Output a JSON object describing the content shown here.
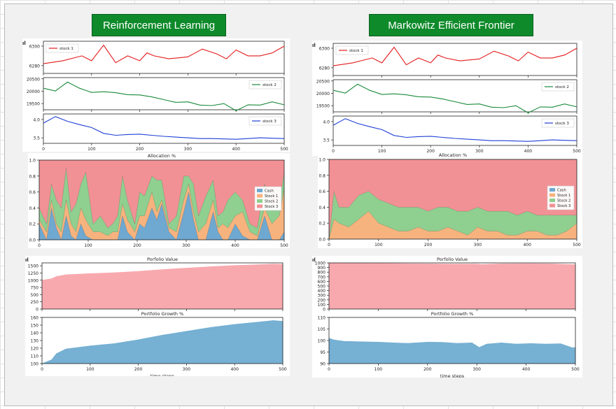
{
  "headers": {
    "left": "Reinforcement Learning",
    "right": "Markowitz Efficient Frontier"
  },
  "colors": {
    "banner": "#0f8a2b",
    "stock_1": "#e41a1c",
    "stock_2": "#1a8a3a",
    "stock_3": "#1f3fd6",
    "cash": "#6fa8d0",
    "alloc_stock_1": "#f7b37e",
    "alloc_stock_2": "#8fcf8f",
    "alloc_stock_3": "#f29195",
    "value": "#f8a9ae",
    "growth": "#76b0d3"
  },
  "chart_data": [
    {
      "panel": "Reinforcement Learning",
      "type": "line",
      "title": "",
      "xlabel": "",
      "xlim": [
        0,
        500
      ],
      "xticks": [
        "0",
        "100",
        "200",
        "300",
        "400",
        "500"
      ],
      "subplots": [
        {
          "series": [
            {
              "name": "stock 1",
              "x": [
                0,
                40,
                80,
                100,
                125,
                150,
                175,
                200,
                215,
                230,
                260,
                300,
                330,
                360,
                380,
                400,
                425,
                450,
                475,
                500
              ],
              "y": [
                6282,
                6285,
                6290,
                6285,
                6301,
                6283,
                6290,
                6285,
                6293,
                6290,
                6287,
                6289,
                6297,
                6292,
                6287,
                6296,
                6290,
                6290,
                6293,
                6300
              ]
            }
          ],
          "yticks": [
            "6280",
            "6300"
          ],
          "ylim": [
            6272,
            6305
          ],
          "legend": "top-left"
        },
        {
          "series": [
            {
              "name": "stock 2",
              "x": [
                0,
                25,
                50,
                75,
                100,
                125,
                150,
                175,
                200,
                225,
                250,
                275,
                300,
                325,
                350,
                375,
                400,
                425,
                450,
                475,
                500
              ],
              "y": [
                20120,
                20010,
                20370,
                20120,
                19950,
                19980,
                19940,
                19860,
                19850,
                19770,
                19660,
                19550,
                19570,
                19440,
                19420,
                19500,
                19210,
                19450,
                19440,
                19570,
                19450
              ]
            }
          ],
          "yticks": [
            "19500",
            "20000",
            "20500"
          ],
          "ylim": [
            19250,
            20550
          ],
          "legend": "top-right"
        },
        {
          "series": [
            {
              "name": "stock 3",
              "x": [
                0,
                25,
                50,
                75,
                100,
                125,
                150,
                175,
                200,
                225,
                250,
                275,
                300,
                325,
                350,
                375,
                400,
                425,
                450,
                475,
                500
              ],
              "y": [
                3.9,
                4.08,
                3.95,
                3.86,
                3.78,
                3.62,
                3.57,
                3.59,
                3.6,
                3.57,
                3.54,
                3.52,
                3.5,
                3.48,
                3.48,
                3.47,
                3.46,
                3.48,
                3.5,
                3.49,
                3.48
              ]
            }
          ],
          "yticks": [
            "3.5",
            "4.0"
          ],
          "ylim": [
            3.35,
            4.15
          ],
          "legend": "top-right"
        }
      ]
    },
    {
      "panel": "Reinforcement Learning",
      "type": "area",
      "title": "Allocation %",
      "xlim": [
        0,
        500
      ],
      "ylim": [
        0,
        1.0
      ],
      "xticks": [
        "0",
        "100",
        "200",
        "300",
        "400",
        "500"
      ],
      "yticks": [
        "0.0",
        "0.2",
        "0.4",
        "0.6",
        "0.8",
        "1.0"
      ],
      "legend": "right",
      "x": [
        0,
        15,
        25,
        35,
        45,
        55,
        65,
        75,
        85,
        95,
        110,
        125,
        140,
        150,
        160,
        170,
        180,
        195,
        205,
        215,
        230,
        240,
        250,
        265,
        280,
        295,
        305,
        315,
        325,
        340,
        355,
        365,
        375,
        385,
        400,
        415,
        430,
        445,
        460,
        475,
        490,
        500
      ],
      "series": [
        {
          "name": "Cash",
          "values": [
            0.2,
            0.0,
            0.4,
            0.15,
            0.0,
            0.3,
            0.05,
            0.0,
            0.2,
            0.05,
            0.0,
            0.0,
            0.0,
            0.0,
            0.0,
            0.3,
            0.1,
            0.0,
            0.2,
            0.15,
            0.4,
            0.25,
            0.45,
            0.1,
            0.0,
            0.35,
            0.6,
            0.25,
            0.0,
            0.0,
            0.35,
            0.1,
            0.0,
            0.0,
            0.2,
            0.05,
            0.0,
            0.0,
            0.3,
            0.0,
            0.0,
            0.1
          ]
        },
        {
          "name": "Stock 1",
          "values": [
            0.05,
            0.1,
            0.1,
            0.05,
            0.1,
            0.2,
            0.15,
            0.1,
            0.2,
            0.2,
            0.1,
            0.1,
            0.05,
            0.1,
            0.1,
            0.15,
            0.15,
            0.1,
            0.1,
            0.15,
            0.2,
            0.1,
            0.05,
            0.05,
            0.1,
            0.15,
            0.1,
            0.1,
            0.1,
            0.2,
            0.15,
            0.05,
            0.2,
            0.15,
            0.1,
            0.3,
            0.1,
            0.05,
            0.1,
            0.2,
            0.3,
            0.55
          ]
        },
        {
          "name": "Stock 2",
          "values": [
            0.15,
            0.1,
            0.2,
            0.3,
            0.3,
            0.4,
            0.15,
            0.35,
            0.3,
            0.6,
            0.1,
            0.2,
            0.1,
            0.1,
            0.2,
            0.35,
            0.25,
            0.1,
            0.3,
            0.25,
            0.2,
            0.4,
            0.25,
            0.05,
            0.2,
            0.3,
            0.1,
            0.35,
            0.2,
            0.35,
            0.25,
            0.15,
            0.15,
            0.35,
            0.3,
            0.15,
            0.1,
            0.1,
            0.3,
            0.2,
            0.15,
            0.2
          ]
        },
        {
          "name": "Stock 3",
          "values": [
            0.6,
            0.8,
            0.3,
            0.5,
            0.6,
            0.1,
            0.65,
            0.55,
            0.3,
            0.15,
            0.8,
            0.7,
            0.85,
            0.8,
            0.7,
            0.2,
            0.5,
            0.8,
            0.4,
            0.45,
            0.2,
            0.25,
            0.25,
            0.8,
            0.7,
            0.2,
            0.2,
            0.3,
            0.7,
            0.45,
            0.25,
            0.7,
            0.65,
            0.5,
            0.4,
            0.5,
            0.8,
            0.85,
            0.3,
            0.6,
            0.55,
            0.15
          ]
        }
      ]
    },
    {
      "panel": "Reinforcement Learning",
      "type": "area",
      "title": "Porfolio Value",
      "xlim": [
        0,
        500
      ],
      "ylim": [
        0,
        1600
      ],
      "yticks": [
        "0",
        "250",
        "500",
        "750",
        "1000",
        "1250",
        "1500"
      ],
      "x": [
        0,
        20,
        30,
        50,
        100,
        150,
        200,
        250,
        300,
        350,
        400,
        450,
        480,
        500
      ],
      "values": [
        1000,
        1050,
        1130,
        1190,
        1230,
        1260,
        1310,
        1370,
        1420,
        1470,
        1510,
        1540,
        1560,
        1550
      ]
    },
    {
      "panel": "Reinforcement Learning",
      "type": "area",
      "title": "Portfolio Growth %",
      "xlabel": "time steps",
      "xlim": [
        0,
        500
      ],
      "ylim": [
        100,
        160
      ],
      "xticks": [
        "0",
        "100",
        "200",
        "300",
        "400",
        "500"
      ],
      "yticks": [
        "100",
        "110",
        "120",
        "130",
        "140",
        "150",
        "160"
      ],
      "x": [
        0,
        20,
        30,
        50,
        100,
        150,
        200,
        250,
        300,
        350,
        400,
        450,
        480,
        500
      ],
      "values": [
        100,
        105,
        113,
        119,
        123,
        126,
        131,
        137,
        142,
        147,
        151,
        154,
        156,
        155
      ]
    },
    {
      "panel": "Markowitz Efficient Frontier",
      "type": "line",
      "title": "",
      "xlabel": "",
      "xlim": [
        0,
        500
      ],
      "xticks": [
        "0",
        "100",
        "200",
        "300",
        "400",
        "500"
      ],
      "subplots": [
        {
          "series": [
            {
              "name": "stock 1",
              "x": [
                0,
                40,
                80,
                100,
                125,
                150,
                175,
                200,
                215,
                230,
                260,
                300,
                330,
                360,
                380,
                400,
                425,
                450,
                475,
                500
              ],
              "y": [
                6282,
                6285,
                6290,
                6285,
                6301,
                6283,
                6290,
                6285,
                6293,
                6290,
                6287,
                6289,
                6297,
                6292,
                6287,
                6296,
                6290,
                6290,
                6293,
                6300
              ]
            }
          ],
          "yticks": [
            "6280",
            "6300"
          ],
          "ylim": [
            6272,
            6305
          ],
          "legend": "top-left"
        },
        {
          "series": [
            {
              "name": "stock 2",
              "x": [
                0,
                25,
                50,
                75,
                100,
                125,
                150,
                175,
                200,
                225,
                250,
                275,
                300,
                325,
                350,
                375,
                400,
                425,
                450,
                475,
                500
              ],
              "y": [
                20120,
                20010,
                20370,
                20120,
                19950,
                19980,
                19940,
                19860,
                19850,
                19770,
                19660,
                19550,
                19570,
                19440,
                19420,
                19500,
                19210,
                19450,
                19440,
                19570,
                19450
              ]
            }
          ],
          "yticks": [
            "19500",
            "20000",
            "20500"
          ],
          "ylim": [
            19250,
            20550
          ],
          "legend": "top-right"
        },
        {
          "series": [
            {
              "name": "stock 3",
              "x": [
                0,
                25,
                50,
                75,
                100,
                125,
                150,
                175,
                200,
                225,
                250,
                275,
                300,
                325,
                350,
                375,
                400,
                425,
                450,
                475,
                500
              ],
              "y": [
                3.9,
                4.08,
                3.95,
                3.86,
                3.78,
                3.62,
                3.57,
                3.59,
                3.6,
                3.57,
                3.54,
                3.52,
                3.5,
                3.48,
                3.48,
                3.47,
                3.46,
                3.48,
                3.5,
                3.49,
                3.48
              ]
            }
          ],
          "yticks": [
            "3.5",
            "4.0"
          ],
          "ylim": [
            3.35,
            4.15
          ],
          "legend": "top-right"
        }
      ]
    },
    {
      "panel": "Markowitz Efficient Frontier",
      "type": "area",
      "title": "Allocation %",
      "xlim": [
        0,
        500
      ],
      "ylim": [
        0,
        1.0
      ],
      "xticks": [
        "0",
        "100",
        "200",
        "300",
        "400",
        "500"
      ],
      "yticks": [
        "0.0",
        "0.2",
        "0.4",
        "0.6",
        "0.8",
        "1.0"
      ],
      "legend": "right",
      "x": [
        0,
        10,
        20,
        40,
        60,
        80,
        100,
        120,
        140,
        160,
        180,
        200,
        220,
        240,
        260,
        280,
        300,
        320,
        340,
        360,
        380,
        400,
        420,
        440,
        460,
        480,
        500
      ],
      "series": [
        {
          "name": "Cash",
          "values": [
            0,
            0,
            0,
            0,
            0,
            0,
            0,
            0,
            0,
            0,
            0,
            0,
            0,
            0,
            0,
            0,
            0,
            0,
            0,
            0,
            0,
            0,
            0,
            0,
            0,
            0,
            0
          ]
        },
        {
          "name": "Stock 1",
          "values": [
            0.0,
            0.25,
            0.2,
            0.15,
            0.25,
            0.35,
            0.2,
            0.15,
            0.1,
            0.1,
            0.15,
            0.1,
            0.1,
            0.15,
            0.1,
            0.05,
            0.15,
            0.1,
            0.1,
            0.05,
            0.05,
            0.1,
            0.1,
            0.05,
            0.05,
            0.1,
            0.2
          ]
        },
        {
          "name": "Stock 2",
          "values": [
            0.0,
            0.35,
            0.2,
            0.25,
            0.3,
            0.25,
            0.3,
            0.3,
            0.3,
            0.3,
            0.25,
            0.25,
            0.3,
            0.25,
            0.25,
            0.3,
            0.25,
            0.25,
            0.25,
            0.3,
            0.25,
            0.25,
            0.2,
            0.25,
            0.25,
            0.2,
            0.1
          ]
        },
        {
          "name": "Stock 3",
          "values": [
            1.0,
            0.4,
            0.6,
            0.6,
            0.45,
            0.4,
            0.5,
            0.55,
            0.6,
            0.6,
            0.6,
            0.65,
            0.6,
            0.6,
            0.65,
            0.65,
            0.6,
            0.65,
            0.65,
            0.65,
            0.7,
            0.65,
            0.7,
            0.7,
            0.7,
            0.7,
            0.7
          ]
        }
      ]
    },
    {
      "panel": "Markowitz Efficient Frontier",
      "type": "area",
      "title": "Porfolio Value",
      "xlim": [
        0,
        500
      ],
      "ylim": [
        0,
        1000
      ],
      "yticks": [
        "0",
        "100",
        "200",
        "300",
        "400",
        "500",
        "600",
        "700",
        "800",
        "900",
        "1000"
      ],
      "x": [
        0,
        50,
        100,
        150,
        200,
        250,
        300,
        310,
        350,
        400,
        450,
        500
      ],
      "values": [
        1000,
        995,
        990,
        985,
        980,
        975,
        975,
        965,
        980,
        985,
        980,
        960
      ]
    },
    {
      "panel": "Markowitz Efficient Frontier",
      "type": "area",
      "title": "Portfolio Growth %",
      "xlabel": "time steps",
      "xlim": [
        0,
        500
      ],
      "ylim": [
        90,
        110
      ],
      "xticks": [
        "0",
        "100",
        "200",
        "300",
        "400",
        "500"
      ],
      "yticks": [
        "90",
        "95",
        "100",
        "105",
        "110"
      ],
      "x": [
        0,
        10,
        30,
        60,
        100,
        130,
        160,
        200,
        230,
        260,
        290,
        305,
        320,
        350,
        380,
        410,
        440,
        470,
        495,
        500
      ],
      "values": [
        101,
        100.3,
        99.7,
        99.5,
        99.3,
        99.0,
        98.8,
        99.3,
        99.2,
        98.8,
        99.0,
        97.0,
        98.5,
        99.0,
        98.5,
        98.7,
        98.5,
        98.6,
        96.8,
        97.0
      ]
    }
  ]
}
